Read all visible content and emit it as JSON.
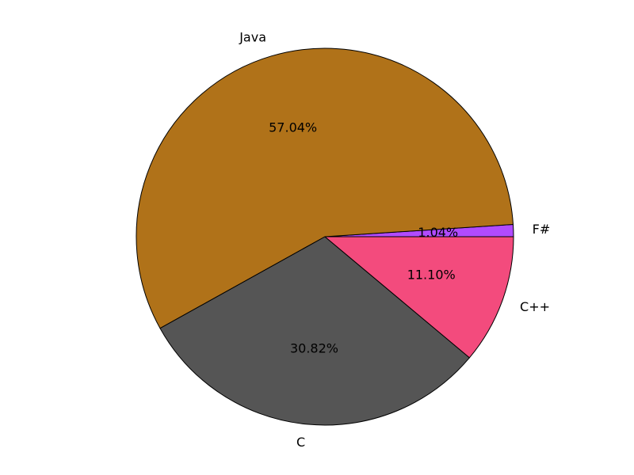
{
  "chart_data": {
    "type": "pie",
    "categories": [
      "F#",
      "Java",
      "C",
      "C++"
    ],
    "values": [
      1.04,
      57.04,
      30.82,
      11.1
    ],
    "percent_labels": [
      "1.04%",
      "57.04%",
      "30.82%",
      "11.10%"
    ],
    "colors": [
      "#b14bff",
      "#b07219",
      "#555555",
      "#f34b7d"
    ],
    "title": "",
    "legend": "none"
  }
}
